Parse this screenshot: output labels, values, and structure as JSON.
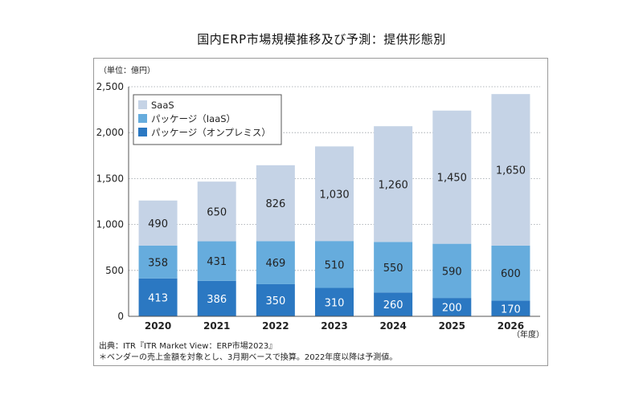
{
  "title": "国内ERP市場規模推移及び予測：提供形態別",
  "colors": {
    "saas": "#c5d3e6",
    "iaas": "#66acdd",
    "onprem": "#2b78c2",
    "grid": "#9aa0a6",
    "frame": "#9a9a9a"
  },
  "chart_data": {
    "type": "bar",
    "stacked": true,
    "unit_label": "（単位：億円）",
    "x_axis_unit": "（年度）",
    "categories": [
      "2020",
      "2021",
      "2022",
      "2023",
      "2024",
      "2025",
      "2026"
    ],
    "series": [
      {
        "name": "パッケージ（オンプレミス）",
        "key": "onprem",
        "values": [
          413,
          386,
          350,
          310,
          260,
          200,
          170
        ],
        "value_labels": [
          "413",
          "386",
          "350",
          "310",
          "260",
          "200",
          "170"
        ]
      },
      {
        "name": "パッケージ（IaaS）",
        "key": "iaas",
        "values": [
          358,
          431,
          469,
          510,
          550,
          590,
          600
        ],
        "value_labels": [
          "358",
          "431",
          "469",
          "510",
          "550",
          "590",
          "600"
        ]
      },
      {
        "name": "SaaS",
        "key": "saas",
        "values": [
          490,
          650,
          826,
          1030,
          1260,
          1450,
          1650
        ],
        "value_labels": [
          "490",
          "650",
          "826",
          "1,030",
          "1,260",
          "1,450",
          "1,650"
        ]
      }
    ],
    "legend": {
      "placement": "top-left",
      "order": [
        "SaaS",
        "パッケージ（IaaS）",
        "パッケージ（オンプレミス）"
      ]
    },
    "ylim": [
      0,
      2500
    ],
    "yticks": [
      0,
      500,
      1000,
      1500,
      2000,
      2500
    ],
    "ytick_labels": [
      "0",
      "500",
      "1,000",
      "1,500",
      "2,000",
      "2,500"
    ],
    "grid": "horizontal dotted"
  },
  "footnotes": {
    "source": "出典：ITR『ITR Market View：ERP市場2023』",
    "note": "＊ベンダーの売上金額を対象とし、3月期ベースで換算。2022年度以降は予測値。"
  }
}
